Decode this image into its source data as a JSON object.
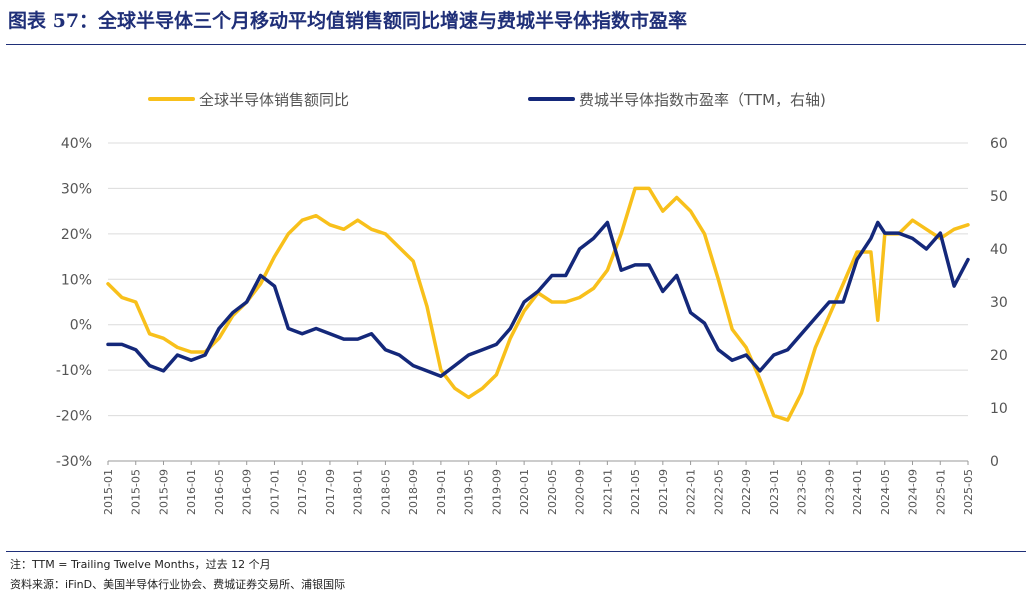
{
  "title": "图表 57：全球半导体三个月移动平均值销售额同比增速与费城半导体指数市盈率",
  "note": "注：TTM = Trailing Twelve Months，过去 12 个月",
  "source": "资料来源：iFinD、美国半导体行业协会、费城证券交易所、浦银国际",
  "chart_data": {
    "type": "line",
    "legend_position": "top",
    "grid": true,
    "x": [
      "2015-01",
      "2015-03",
      "2015-05",
      "2015-07",
      "2015-09",
      "2015-11",
      "2016-01",
      "2016-03",
      "2016-05",
      "2016-07",
      "2016-09",
      "2016-11",
      "2017-01",
      "2017-03",
      "2017-05",
      "2017-07",
      "2017-09",
      "2017-11",
      "2018-01",
      "2018-03",
      "2018-05",
      "2018-07",
      "2018-09",
      "2018-11",
      "2019-01",
      "2019-03",
      "2019-05",
      "2019-07",
      "2019-09",
      "2019-11",
      "2020-01",
      "2020-03",
      "2020-05",
      "2020-07",
      "2020-09",
      "2020-11",
      "2021-01",
      "2021-03",
      "2021-05",
      "2021-07",
      "2021-09",
      "2021-11",
      "2022-01",
      "2022-03",
      "2022-05",
      "2022-07",
      "2022-09",
      "2022-11",
      "2023-01",
      "2023-03",
      "2023-05",
      "2023-07",
      "2023-09",
      "2023-11",
      "2024-01",
      "2024-03",
      "2024-04",
      "2024-05",
      "2024-07",
      "2024-09",
      "2024-11",
      "2025-01",
      "2025-03",
      "2025-05"
    ],
    "x_tick_labels": [
      "2015-01",
      "2015-05",
      "2015-09",
      "2016-01",
      "2016-05",
      "2016-09",
      "2017-01",
      "2017-05",
      "2017-09",
      "2018-01",
      "2018-05",
      "2018-09",
      "2019-01",
      "2019-05",
      "2019-09",
      "2020-01",
      "2020-05",
      "2020-09",
      "2021-01",
      "2021-05",
      "2021-09",
      "2022-01",
      "2022-05",
      "2022-09",
      "2023-01",
      "2023-05",
      "2023-09",
      "2024-01",
      "2024-05",
      "2024-09",
      "2025-01",
      "2025-05"
    ],
    "left_axis": {
      "range": [
        -30,
        40
      ],
      "ticks": [
        -30,
        -20,
        -10,
        0,
        10,
        20,
        30,
        40
      ],
      "format": "percent"
    },
    "right_axis": {
      "range": [
        0,
        60
      ],
      "ticks": [
        0,
        10,
        20,
        30,
        40,
        50,
        60
      ]
    },
    "series": [
      {
        "name": "全球半导体销售额同比",
        "axis": "left",
        "color": "#f8c01b",
        "values": [
          9,
          6,
          5,
          -2,
          -3,
          -5,
          -6,
          -6,
          -3,
          2,
          5,
          9,
          15,
          20,
          23,
          24,
          22,
          21,
          23,
          21,
          20,
          17,
          14,
          4,
          -10,
          -14,
          -16,
          -14,
          -11,
          -3,
          3,
          7,
          5,
          5,
          6,
          8,
          12,
          20,
          30,
          30,
          25,
          28,
          25,
          20,
          10,
          -1,
          -5,
          -12,
          -20,
          -21,
          -15,
          -5,
          2,
          9,
          16,
          16,
          1,
          20,
          20,
          23,
          21,
          19,
          21,
          22
        ],
        "null_after_index": 63
      },
      {
        "name": "费城半导体指数市盈率（TTM，右轴)",
        "axis": "right",
        "color": "#14287a",
        "values": [
          22,
          22,
          21,
          18,
          17,
          20,
          19,
          20,
          25,
          28,
          30,
          35,
          33,
          25,
          24,
          25,
          24,
          23,
          23,
          24,
          21,
          20,
          18,
          17,
          16,
          18,
          20,
          21,
          22,
          25,
          30,
          32,
          35,
          35,
          40,
          42,
          45,
          36,
          37,
          37,
          32,
          35,
          28,
          26,
          21,
          19,
          20,
          17,
          20,
          21,
          24,
          27,
          30,
          30,
          38,
          42,
          45,
          43,
          43,
          42,
          40,
          43,
          33,
          38
        ]
      }
    ]
  }
}
